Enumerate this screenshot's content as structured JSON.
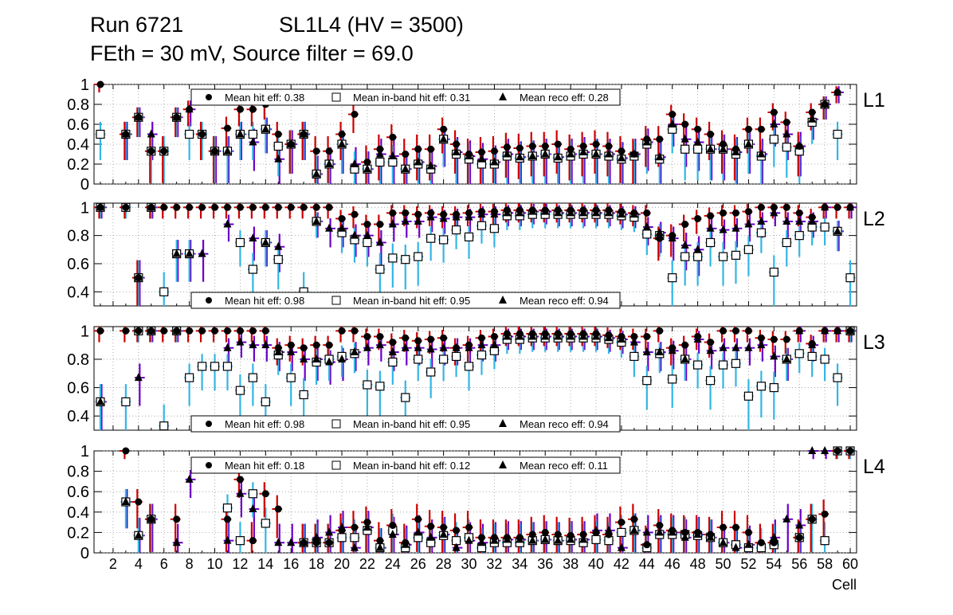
{
  "header": {
    "run": "Run 6721",
    "chamber": "SL1L4 (HV = 3500)",
    "settings": "FEth = 30 mV, Source filter = 69.0"
  },
  "colors": {
    "hit": "#000000",
    "hit_err": "#cc0000",
    "inband": "#40c0ff",
    "inband_err": "#33b5e5",
    "reco": "#000000",
    "reco_err": "#6a00c8",
    "grid": "#999999"
  },
  "chart_data": {
    "type": "scatter",
    "xlabel": "Cell",
    "xticks": [
      2,
      4,
      6,
      8,
      10,
      12,
      14,
      16,
      18,
      20,
      22,
      24,
      26,
      28,
      30,
      32,
      34,
      36,
      38,
      40,
      42,
      44,
      46,
      48,
      50,
      52,
      54,
      56,
      58,
      60
    ],
    "x": [
      1,
      2,
      3,
      4,
      5,
      6,
      7,
      8,
      9,
      10,
      11,
      12,
      13,
      14,
      15,
      16,
      17,
      18,
      19,
      20,
      21,
      22,
      23,
      24,
      25,
      26,
      27,
      28,
      29,
      30,
      31,
      32,
      33,
      34,
      35,
      36,
      37,
      38,
      39,
      40,
      41,
      42,
      43,
      44,
      45,
      46,
      47,
      48,
      49,
      50,
      51,
      52,
      53,
      54,
      55,
      56,
      57,
      58,
      59,
      60
    ],
    "panels": [
      {
        "label": "L1",
        "ylim": [
          0,
          1
        ],
        "yticks": [
          0,
          0.2,
          0.4,
          0.6,
          0.8,
          1
        ],
        "yticklabels": [
          "0",
          "0.2",
          "0.4",
          "0.6",
          "0.8",
          "1"
        ],
        "legend": {
          "hit": "Mean hit  eff: 0.38",
          "inband": "Mean in-band hit eff: 0.31",
          "reco": "Mean reco eff: 0.28"
        },
        "series": [
          {
            "name": "hit",
            "values": [
              1,
              null,
              0.5,
              0.67,
              0.33,
              0.33,
              0.67,
              0.75,
              0.5,
              0.33,
              0.56,
              0.75,
              0.75,
              0.8,
              0.5,
              0.4,
              0.5,
              0.33,
              0.33,
              0.5,
              0.7,
              0.22,
              0.35,
              0.47,
              0.3,
              0.35,
              0.35,
              0.55,
              0.4,
              0.3,
              0.32,
              0.33,
              0.37,
              0.36,
              0.38,
              0.38,
              0.4,
              0.35,
              0.38,
              0.4,
              0.38,
              0.33,
              0.3,
              0.45,
              0.45,
              0.7,
              0.6,
              0.55,
              0.5,
              0.4,
              0.35,
              0.55,
              0.55,
              0.72,
              0.62,
              0.38,
              0.72,
              0.8,
              0.92,
              null
            ]
          },
          {
            "name": "inband",
            "values": [
              0.5,
              null,
              0.5,
              0.67,
              0.33,
              0.33,
              0.67,
              0.5,
              0.5,
              0.33,
              0.33,
              0.5,
              0.5,
              0.55,
              0.38,
              0.4,
              0.5,
              0.1,
              0.2,
              0.4,
              0.15,
              0.15,
              0.22,
              0.22,
              0.15,
              0.2,
              0.15,
              0.45,
              0.3,
              0.25,
              0.2,
              0.2,
              0.28,
              0.26,
              0.28,
              0.3,
              0.26,
              0.28,
              0.3,
              0.3,
              0.28,
              0.25,
              0.28,
              0.4,
              0.25,
              0.55,
              0.35,
              0.35,
              0.35,
              0.35,
              0.3,
              0.4,
              0.28,
              0.45,
              0.37,
              0.33,
              0.62,
              0.8,
              0.5,
              null
            ]
          },
          {
            "name": "reco",
            "values": [
              null,
              null,
              0.5,
              0.67,
              0.5,
              null,
              0.67,
              0.75,
              null,
              0.33,
              0.33,
              0.5,
              0.42,
              0.55,
              0.25,
              0.4,
              0.5,
              0.1,
              0.2,
              0.4,
              0.2,
              0.15,
              0.3,
              0.28,
              0.15,
              0.22,
              0.18,
              0.45,
              0.32,
              0.28,
              0.25,
              0.22,
              0.3,
              0.27,
              0.28,
              0.3,
              0.27,
              0.3,
              0.32,
              0.3,
              0.3,
              0.26,
              0.3,
              0.42,
              0.27,
              0.6,
              0.45,
              0.42,
              0.35,
              0.35,
              0.32,
              0.4,
              0.3,
              0.6,
              0.5,
              0.38,
              0.65,
              0.8,
              0.92,
              null
            ]
          }
        ]
      },
      {
        "label": "L2",
        "ylim": [
          0.3,
          1.03
        ],
        "yticks": [
          0.4,
          0.6,
          0.8,
          1
        ],
        "yticklabels": [
          "0.4",
          "0.6",
          "0.8",
          "1"
        ],
        "legend": {
          "hit": "Mean hit  eff: 0.98",
          "inband": "Mean in-band hit eff: 0.95",
          "reco": "Mean reco eff: 0.94"
        },
        "series": [
          {
            "name": "hit",
            "values": [
              1,
              null,
              1,
              0.5,
              1,
              1,
              1,
              1,
              1,
              1,
              1,
              1,
              1,
              1,
              1,
              1,
              1,
              1,
              1,
              0.92,
              0.95,
              0.88,
              0.88,
              0.96,
              0.96,
              0.95,
              0.96,
              0.95,
              0.95,
              0.96,
              0.97,
              0.97,
              0.98,
              0.98,
              0.98,
              0.98,
              0.98,
              0.98,
              0.98,
              0.98,
              0.98,
              0.97,
              0.96,
              0.96,
              0.78,
              0.8,
              0.88,
              0.92,
              0.94,
              0.96,
              0.96,
              0.97,
              1,
              1,
              1,
              0.96,
              0.93,
              1,
              1,
              1
            ]
          },
          {
            "name": "inband",
            "values": [
              1,
              null,
              1,
              0.5,
              1,
              0.4,
              0.67,
              0.67,
              null,
              null,
              null,
              0.75,
              0.56,
              0.75,
              0.63,
              null,
              0.4,
              0.9,
              null,
              0.82,
              0.77,
              0.75,
              0.56,
              0.64,
              0.63,
              0.65,
              0.78,
              0.77,
              0.84,
              0.79,
              0.87,
              0.85,
              0.94,
              0.94,
              0.95,
              0.95,
              0.95,
              0.95,
              0.95,
              0.95,
              0.95,
              0.94,
              0.93,
              0.81,
              0.8,
              0.5,
              0.65,
              0.65,
              0.75,
              0.65,
              0.66,
              0.7,
              0.82,
              0.54,
              0.75,
              0.8,
              0.86,
              0.86,
              0.83,
              0.5
            ]
          },
          {
            "name": "reco",
            "values": [
              1,
              null,
              null,
              0.5,
              1,
              null,
              0.67,
              0.67,
              0.67,
              null,
              0.88,
              null,
              0.78,
              0.75,
              0.72,
              null,
              null,
              0.9,
              0.85,
              0.85,
              0.8,
              0.8,
              0.75,
              0.88,
              0.9,
              0.9,
              0.93,
              0.92,
              0.93,
              0.93,
              0.95,
              0.95,
              0.96,
              0.96,
              0.97,
              0.97,
              0.96,
              0.96,
              0.96,
              0.96,
              0.96,
              0.95,
              0.95,
              0.86,
              0.82,
              0.78,
              0.73,
              0.7,
              0.85,
              0.84,
              0.85,
              0.88,
              0.9,
              0.96,
              0.9,
              0.9,
              0.9,
              1,
              0.83,
              1
            ]
          }
        ]
      },
      {
        "label": "L3",
        "ylim": [
          0.3,
          1.03
        ],
        "yticks": [
          0.4,
          0.6,
          0.8,
          1
        ],
        "yticklabels": [
          "0.4",
          "0.6",
          "0.8",
          "1"
        ],
        "legend": {
          "hit": "Mean hit  eff: 0.98",
          "inband": "Mean in-band hit eff: 0.95",
          "reco": "Mean reco eff: 0.94"
        },
        "series": [
          {
            "name": "hit",
            "values": [
              1,
              null,
              1,
              1,
              1,
              1,
              1,
              1,
              1,
              1,
              1,
              1,
              1,
              1,
              0.88,
              0.9,
              0.88,
              0.9,
              0.9,
              1,
              1,
              0.96,
              0.96,
              0.92,
              0.95,
              0.93,
              0.94,
              0.95,
              0.88,
              0.9,
              0.95,
              0.96,
              0.98,
              0.98,
              0.98,
              0.98,
              0.98,
              0.98,
              0.98,
              0.98,
              0.97,
              0.96,
              0.96,
              0.96,
              1,
              0.88,
              0.9,
              0.96,
              0.92,
              1,
              1,
              1,
              0.95,
              0.94,
              0.94,
              1,
              0.91,
              1,
              1,
              1
            ]
          },
          {
            "name": "inband",
            "values": [
              0.5,
              null,
              0.5,
              1,
              1,
              0.33,
              1,
              0.67,
              0.75,
              0.75,
              0.75,
              0.58,
              0.67,
              0.5,
              0.83,
              0.67,
              0.55,
              0.78,
              0.8,
              0.82,
              0.84,
              0.62,
              0.61,
              0.78,
              0.53,
              0.8,
              0.71,
              0.8,
              0.82,
              0.75,
              0.83,
              0.86,
              0.94,
              0.94,
              0.95,
              0.95,
              0.95,
              0.95,
              0.95,
              0.95,
              0.94,
              0.92,
              0.82,
              0.65,
              0.84,
              0.66,
              0.8,
              0.76,
              0.65,
              0.76,
              0.77,
              0.54,
              0.61,
              0.6,
              0.8,
              0.84,
              0.82,
              0.8,
              0.67,
              1
            ]
          },
          {
            "name": "reco",
            "values": [
              0.5,
              null,
              null,
              0.67,
              1,
              null,
              1,
              null,
              null,
              null,
              0.88,
              0.92,
              0.9,
              0.9,
              0.85,
              0.85,
              0.8,
              0.8,
              0.78,
              0.8,
              0.85,
              0.88,
              0.9,
              0.85,
              0.88,
              0.88,
              0.87,
              0.88,
              0.88,
              0.88,
              0.9,
              0.9,
              0.96,
              0.96,
              0.96,
              0.96,
              0.96,
              0.96,
              0.96,
              0.96,
              0.95,
              0.94,
              0.92,
              0.85,
              0.85,
              0.86,
              0.8,
              0.94,
              0.86,
              0.88,
              0.88,
              0.88,
              0.9,
              0.82,
              0.8,
              1,
              0.9,
              1,
              1,
              1
            ]
          }
        ]
      },
      {
        "label": "L4",
        "ylim": [
          0,
          1
        ],
        "yticks": [
          0,
          0.2,
          0.4,
          0.6,
          0.8,
          1
        ],
        "yticklabels": [
          "0",
          "0.2",
          "0.4",
          "0.6",
          "0.8",
          "1"
        ],
        "legend": {
          "hit": "Mean hit  eff: 0.18",
          "inband": "Mean in-band hit eff: 0.12",
          "reco": "Mean reco eff: 0.11"
        },
        "series": [
          {
            "name": "hit",
            "values": [
              null,
              null,
              1,
              0.5,
              0.33,
              null,
              0.33,
              null,
              null,
              null,
              0.33,
              0.72,
              0.12,
              0.58,
              0.43,
              null,
              0.1,
              0.1,
              0.1,
              0.22,
              0.25,
              0.3,
              0.12,
              0.27,
              0.1,
              0.33,
              0.26,
              0.25,
              0.22,
              0.25,
              0.15,
              0.15,
              0.15,
              0.15,
              0.18,
              0.2,
              0.18,
              0.17,
              0.18,
              0.2,
              0.18,
              0.3,
              0.33,
              0.08,
              0.27,
              0.22,
              0.2,
              0.2,
              0.18,
              0.25,
              0.25,
              0.2,
              0.1,
              0.1,
              null,
              0.15,
              0.33,
              0.38,
              1,
              1
            ]
          },
          {
            "name": "inband",
            "values": [
              null,
              null,
              0.5,
              0.17,
              0.33,
              null,
              null,
              null,
              null,
              null,
              0.44,
              0.12,
              0.58,
              0.29,
              null,
              null,
              0.1,
              0.1,
              0.1,
              0.15,
              0.15,
              0.22,
              0.05,
              0.22,
              0.05,
              0.15,
              0.1,
              0.17,
              0.12,
              0.15,
              0.05,
              0.1,
              0.1,
              0.1,
              0.12,
              0.13,
              0.12,
              0.12,
              0.1,
              0.13,
              0.12,
              0.2,
              0.22,
              0.05,
              0.18,
              0.18,
              0.18,
              0.17,
              0.15,
              0.1,
              0.08,
              0.05,
              0.05,
              0.08,
              null,
              0.15,
              0.33,
              0.12,
              1,
              1
            ]
          },
          {
            "name": "reco",
            "values": [
              null,
              null,
              0.5,
              0.17,
              0.33,
              null,
              0.1,
              0.72,
              null,
              null,
              0.12,
              0.58,
              0.43,
              null,
              0.1,
              0.1,
              0.1,
              0.15,
              0.2,
              0.25,
              0.05,
              0.25,
              0.05,
              0.18,
              0.08,
              0.2,
              0.15,
              0.18,
              0.05,
              0.12,
              0.1,
              0.12,
              0.13,
              0.13,
              0.12,
              0.13,
              0.12,
              0.13,
              0.13,
              0.22,
              0.22,
              0.05,
              0.22,
              0.2,
              0.2,
              0.2,
              0.15,
              0.18,
              0.15,
              0.1,
              0.05,
              0.08,
              null,
              0.15,
              0.33,
              0.27,
              1,
              1,
              null,
              null
            ]
          }
        ]
      }
    ]
  }
}
